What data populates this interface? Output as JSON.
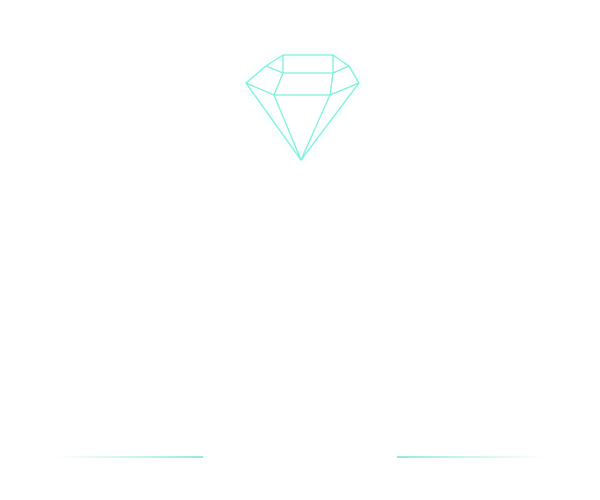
{
  "logo": {
    "icon": "diamond-icon",
    "stroke_color": "#7ff0dc",
    "glow_color": "#b9f7ec"
  },
  "dividers": {
    "color": "#8ee6d7"
  }
}
